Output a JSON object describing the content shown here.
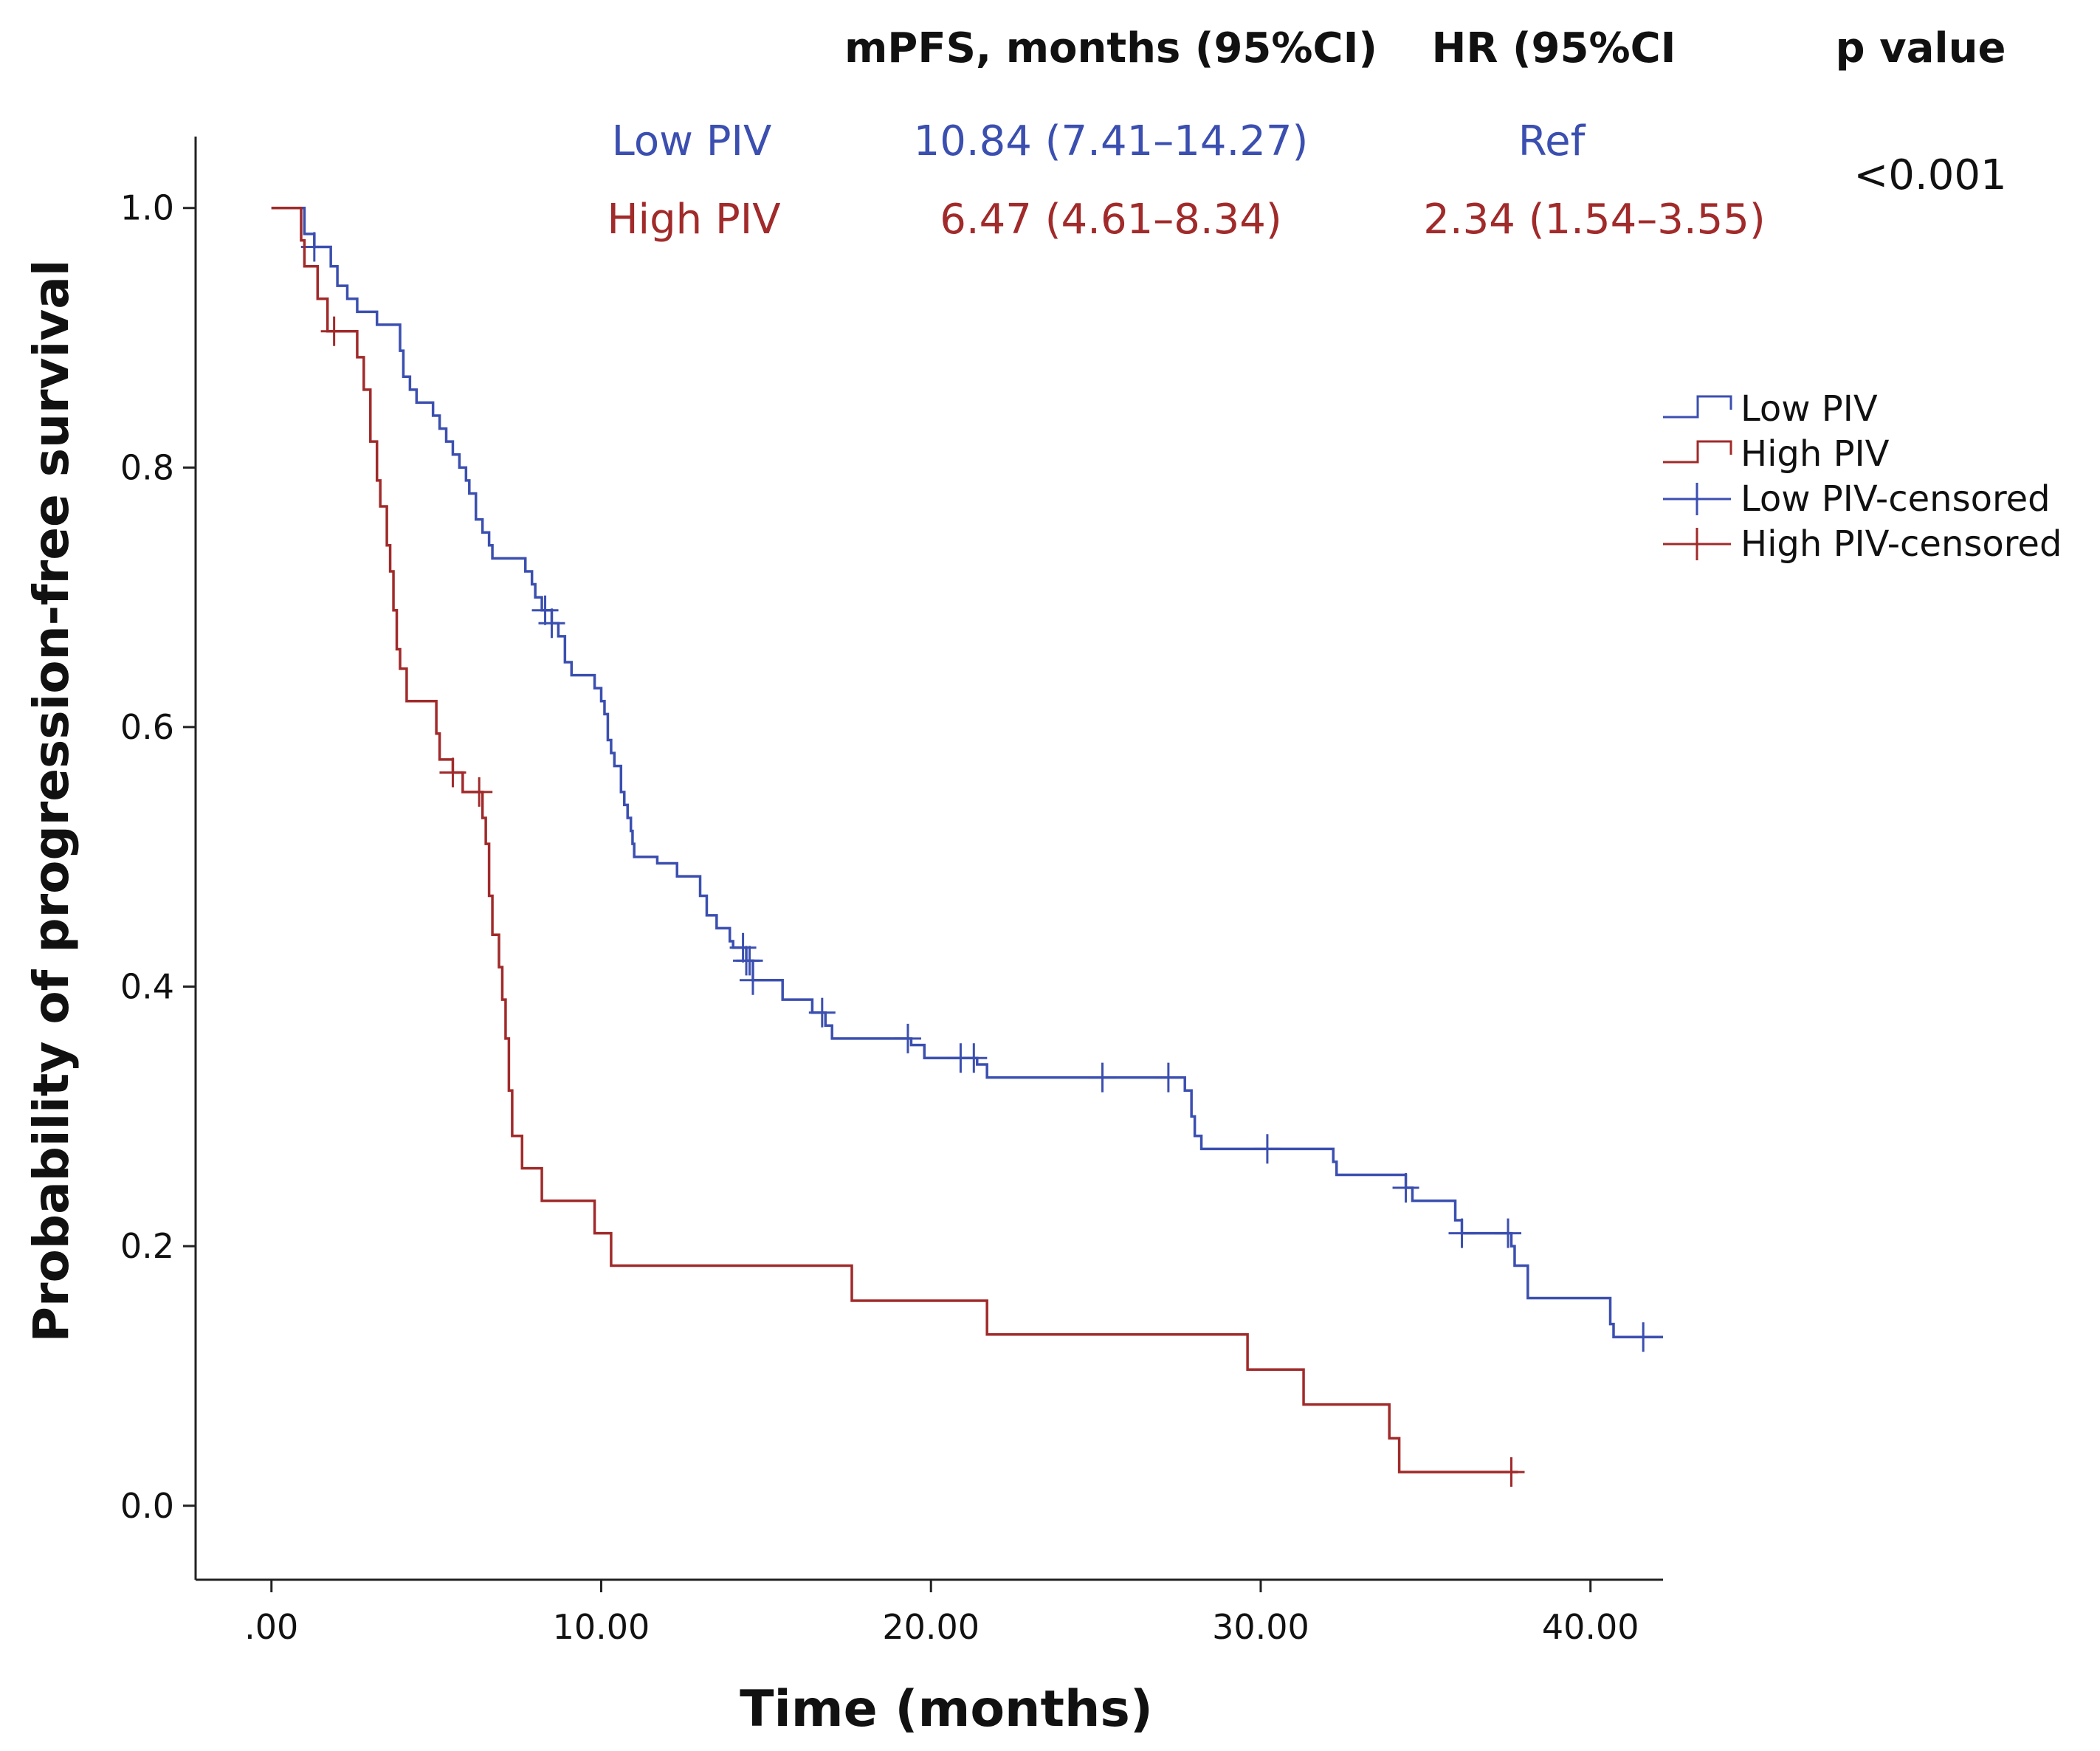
{
  "header": {
    "col_mpfs": "mPFS, months (95%CI)",
    "col_hr": "HR (95%CI",
    "col_p": "p value",
    "rows": [
      {
        "group": "Low PIV",
        "mpfs": "10.84 (7.41–14.27)",
        "hr": "Ref",
        "color": "#3b4fb0"
      },
      {
        "group": "High PIV",
        "mpfs": "6.47 (4.61–8.34)",
        "hr": "2.34 (1.54–3.55)",
        "color": "#a12a2a"
      }
    ],
    "p_value": "<0.001"
  },
  "legend": {
    "position": "right",
    "items": [
      {
        "label": "Low PIV",
        "kind": "step",
        "color": "#3b4fb0"
      },
      {
        "label": "High PIV",
        "kind": "step",
        "color": "#a12a2a"
      },
      {
        "label": "Low PIV-censored",
        "kind": "cross",
        "color": "#3b4fb0"
      },
      {
        "label": "High PIV-censored",
        "kind": "cross",
        "color": "#a12a2a"
      }
    ]
  },
  "chart_data": {
    "type": "line",
    "subtype": "kaplan-meier-step",
    "xlabel": "Time (months)",
    "ylabel": "Probability of progression-free survival",
    "xlim": [
      -2.3,
      42.2
    ],
    "ylim": [
      -0.057,
      1.055
    ],
    "xticks": [
      0,
      10,
      20,
      30,
      40
    ],
    "xtick_labels": [
      ".00",
      "10.00",
      "20.00",
      "30.00",
      "40.00"
    ],
    "yticks": [
      0.0,
      0.2,
      0.4,
      0.6,
      0.8,
      1.0
    ],
    "ytick_labels": [
      "0.0",
      "0.2",
      "0.4",
      "0.6",
      "0.8",
      "1.0"
    ],
    "grid": false,
    "series": [
      {
        "name": "Low PIV",
        "color": "#3b4fb0",
        "end_time": 42.2,
        "steps": [
          [
            0,
            1.0
          ],
          [
            1.0,
            0.98
          ],
          [
            1.3,
            0.97
          ],
          [
            1.8,
            0.955
          ],
          [
            2.0,
            0.94
          ],
          [
            2.3,
            0.93
          ],
          [
            2.6,
            0.92
          ],
          [
            3.2,
            0.91
          ],
          [
            3.9,
            0.89
          ],
          [
            4.0,
            0.87
          ],
          [
            4.2,
            0.86
          ],
          [
            4.4,
            0.85
          ],
          [
            4.9,
            0.84
          ],
          [
            5.1,
            0.83
          ],
          [
            5.3,
            0.82
          ],
          [
            5.5,
            0.81
          ],
          [
            5.7,
            0.8
          ],
          [
            5.9,
            0.79
          ],
          [
            6.0,
            0.78
          ],
          [
            6.2,
            0.76
          ],
          [
            6.4,
            0.75
          ],
          [
            6.6,
            0.74
          ],
          [
            6.7,
            0.73
          ],
          [
            7.7,
            0.72
          ],
          [
            7.9,
            0.71
          ],
          [
            8.0,
            0.7
          ],
          [
            8.2,
            0.69
          ],
          [
            8.5,
            0.68
          ],
          [
            8.7,
            0.67
          ],
          [
            8.9,
            0.65
          ],
          [
            9.1,
            0.64
          ],
          [
            9.8,
            0.63
          ],
          [
            10.0,
            0.62
          ],
          [
            10.1,
            0.61
          ],
          [
            10.2,
            0.59
          ],
          [
            10.3,
            0.58
          ],
          [
            10.4,
            0.57
          ],
          [
            10.6,
            0.55
          ],
          [
            10.7,
            0.54
          ],
          [
            10.8,
            0.53
          ],
          [
            10.9,
            0.52
          ],
          [
            10.95,
            0.51
          ],
          [
            11.0,
            0.5
          ],
          [
            11.7,
            0.495
          ],
          [
            12.3,
            0.485
          ],
          [
            13.0,
            0.47
          ],
          [
            13.2,
            0.455
          ],
          [
            13.5,
            0.445
          ],
          [
            13.9,
            0.435
          ],
          [
            14.0,
            0.43
          ],
          [
            14.4,
            0.42
          ],
          [
            14.6,
            0.405
          ],
          [
            15.5,
            0.39
          ],
          [
            16.4,
            0.38
          ],
          [
            16.8,
            0.37
          ],
          [
            17.0,
            0.36
          ],
          [
            19.4,
            0.355
          ],
          [
            19.8,
            0.345
          ],
          [
            21.4,
            0.34
          ],
          [
            21.7,
            0.33
          ],
          [
            27.7,
            0.32
          ],
          [
            27.9,
            0.3
          ],
          [
            28.0,
            0.285
          ],
          [
            28.2,
            0.275
          ],
          [
            32.2,
            0.265
          ],
          [
            32.3,
            0.255
          ],
          [
            34.4,
            0.245
          ],
          [
            34.6,
            0.235
          ],
          [
            35.9,
            0.22
          ],
          [
            36.1,
            0.21
          ],
          [
            37.6,
            0.2
          ],
          [
            37.7,
            0.185
          ],
          [
            38.1,
            0.16
          ],
          [
            40.6,
            0.14
          ],
          [
            40.7,
            0.13
          ]
        ],
        "censored_times": [
          1.3,
          8.3,
          8.5,
          14.3,
          14.4,
          14.5,
          14.6,
          16.7,
          19.3,
          20.9,
          21.3,
          25.2,
          27.2,
          30.2,
          34.4,
          36.1,
          37.5,
          41.6
        ]
      },
      {
        "name": "High PIV",
        "color": "#a12a2a",
        "end_time": 37.8,
        "steps": [
          [
            0,
            1.0
          ],
          [
            0.9,
            0.975
          ],
          [
            1.0,
            0.955
          ],
          [
            1.4,
            0.93
          ],
          [
            1.7,
            0.905
          ],
          [
            2.6,
            0.885
          ],
          [
            2.8,
            0.86
          ],
          [
            3.0,
            0.82
          ],
          [
            3.2,
            0.79
          ],
          [
            3.3,
            0.77
          ],
          [
            3.5,
            0.74
          ],
          [
            3.6,
            0.72
          ],
          [
            3.7,
            0.69
          ],
          [
            3.8,
            0.66
          ],
          [
            3.9,
            0.645
          ],
          [
            4.1,
            0.62
          ],
          [
            5.0,
            0.595
          ],
          [
            5.1,
            0.575
          ],
          [
            5.5,
            0.565
          ],
          [
            5.8,
            0.55
          ],
          [
            6.4,
            0.53
          ],
          [
            6.5,
            0.51
          ],
          [
            6.6,
            0.47
          ],
          [
            6.7,
            0.44
          ],
          [
            6.9,
            0.415
          ],
          [
            7.0,
            0.39
          ],
          [
            7.1,
            0.36
          ],
          [
            7.2,
            0.32
          ],
          [
            7.3,
            0.285
          ],
          [
            7.6,
            0.26
          ],
          [
            8.2,
            0.235
          ],
          [
            9.8,
            0.21
          ],
          [
            10.3,
            0.185
          ],
          [
            17.6,
            0.158
          ],
          [
            21.7,
            0.132
          ],
          [
            29.6,
            0.105
          ],
          [
            31.3,
            0.078
          ],
          [
            33.9,
            0.052
          ],
          [
            34.2,
            0.026
          ]
        ],
        "censored_times": [
          1.9,
          5.5,
          6.3,
          37.6
        ]
      }
    ]
  }
}
